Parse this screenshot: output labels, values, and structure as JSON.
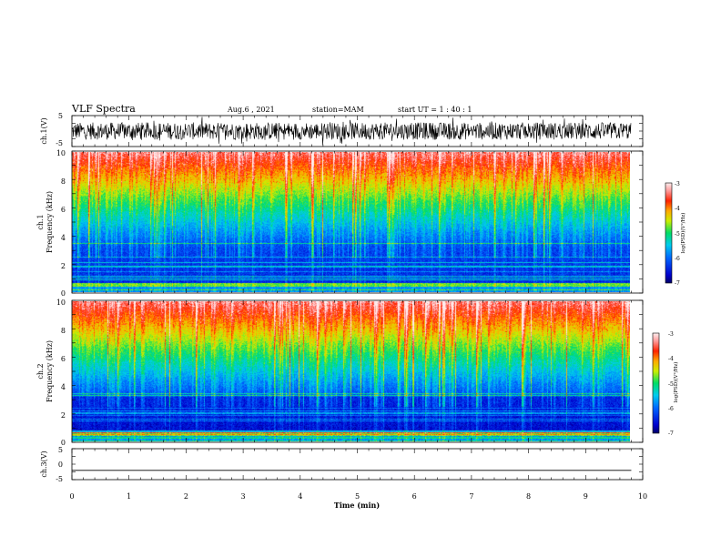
{
  "header": {
    "title": "VLF Spectra",
    "date": "Aug.6 , 2021",
    "station": "station=MAM",
    "start": "start UT = 1 : 40 : 1"
  },
  "chart_data": [
    {
      "type": "line",
      "panel": "ch1-waveform",
      "ylabel": "ch.1(V)",
      "ylim": [
        -5,
        5
      ],
      "yticks": [
        "5",
        "-5"
      ],
      "xlim": [
        0,
        10
      ],
      "description_of_trace": "dense noisy broadband waveform spanning roughly -3 to 3 V, data ends near 9.8 min"
    },
    {
      "type": "heatmap",
      "panel": "ch1-spectrogram",
      "ylabel_line1": "ch.1",
      "ylabel_line2": "Frequency (kHz)",
      "ylim": [
        0,
        10
      ],
      "yticks": [
        "0",
        "2",
        "4",
        "6",
        "8",
        "10"
      ],
      "xlim": [
        0,
        10
      ],
      "data_end_min": 9.8,
      "colorbar": {
        "label": "log(PSD)(V²/Hz)",
        "range": [
          -7,
          -3
        ],
        "ticks": [
          "-3",
          "-4",
          "-5",
          "-6",
          "-7"
        ]
      },
      "pattern": "low power (blue, about -6.5) below ~3 kHz with horizontal cyan/green lines, rising through green/yellow to red (about -3.5) above ~7 kHz, with many vertical impulsive bursts; strong line near 0.5 kHz"
    },
    {
      "type": "heatmap",
      "panel": "ch2-spectrogram",
      "ylabel_line1": "ch.2",
      "ylabel_line2": "Frequency (kHz)",
      "ylim": [
        0,
        10
      ],
      "yticks": [
        "0",
        "2",
        "4",
        "6",
        "8",
        "10"
      ],
      "xlim": [
        0,
        10
      ],
      "data_end_min": 9.8,
      "colorbar": {
        "label": "log(PSD)(V²/Hz)",
        "range": [
          -7,
          -3
        ],
        "ticks": [
          "-3",
          "-4",
          "-5",
          "-6",
          "-7"
        ]
      },
      "pattern": "similar to ch.1 with deeper blue band around 1-3 kHz and red above ~7 kHz"
    },
    {
      "type": "line",
      "panel": "ch3-waveform",
      "ylabel": "ch.3(V)",
      "ylim": [
        -5,
        5
      ],
      "yticks": [
        "5",
        "0",
        "-5"
      ],
      "xlim": [
        0,
        10
      ],
      "xlabel": "Time (min)",
      "xticks": [
        "0",
        "1",
        "2",
        "3",
        "4",
        "5",
        "6",
        "7",
        "8",
        "9",
        "10"
      ],
      "x": [
        0,
        9.8
      ],
      "y": [
        -2,
        -2
      ]
    }
  ],
  "colors": {
    "background": "#ffffff",
    "axes": "#000000"
  }
}
